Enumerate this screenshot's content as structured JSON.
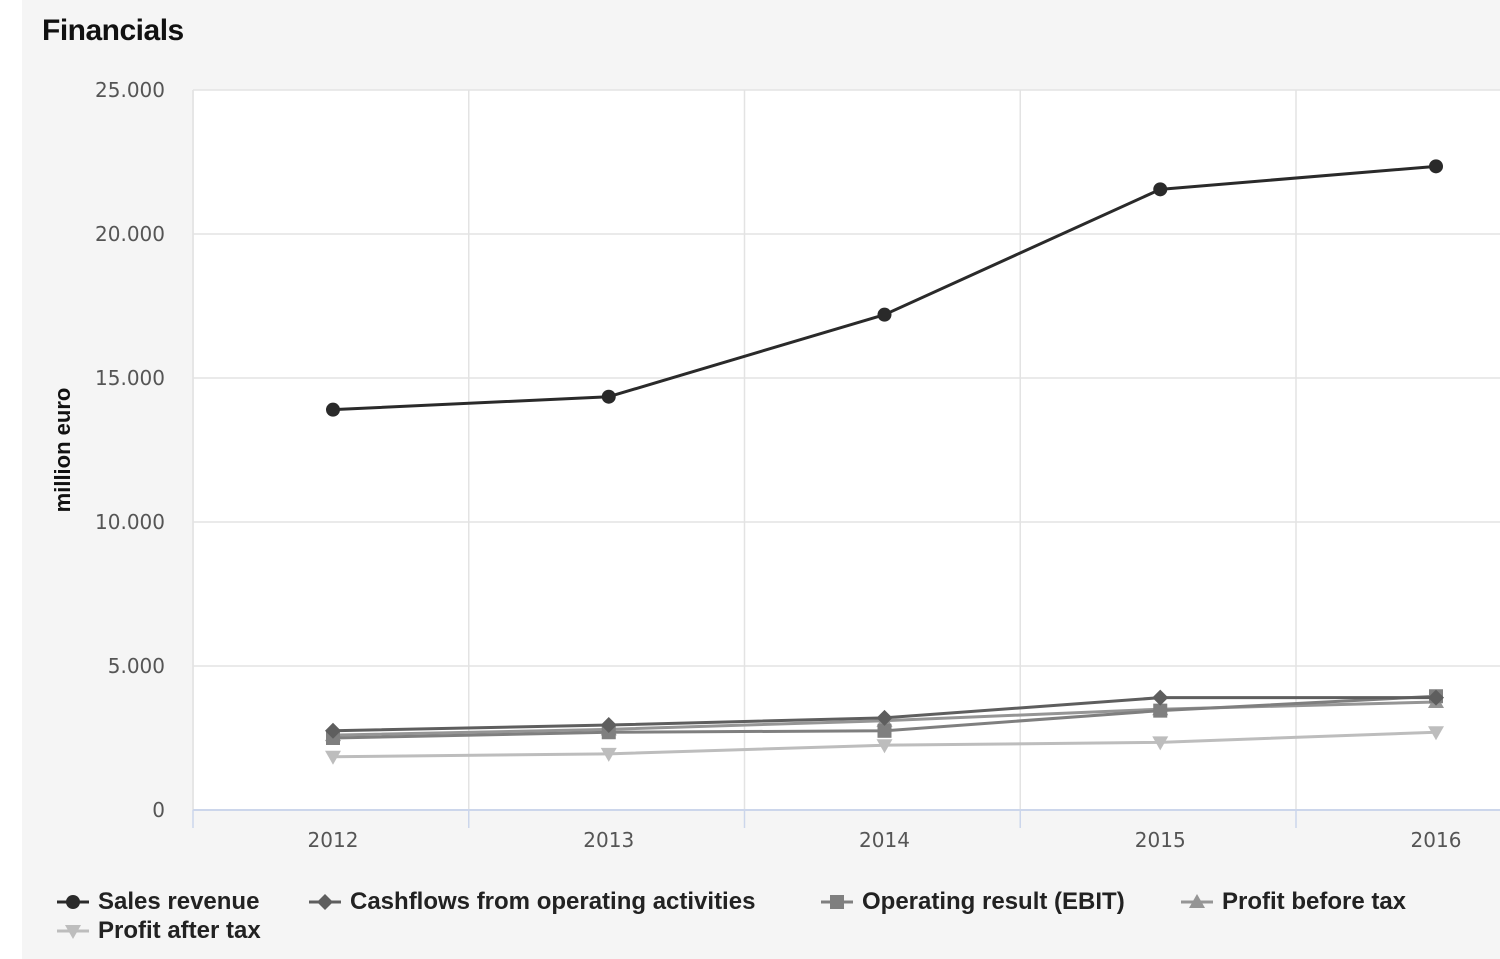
{
  "title": "Financials",
  "colors": {
    "sales": "#2a2a2a",
    "cashflow": "#5e5e5e",
    "ebit": "#7f7f7f",
    "pbt": "#959595",
    "pat": "#bdbdbd",
    "grid": "#e3e3e3",
    "axis": "#ccd6eb"
  },
  "chart_data": {
    "type": "line",
    "title": "Financials",
    "xlabel": "",
    "ylabel": "million euro",
    "categories": [
      "2012",
      "2013",
      "2014",
      "2015",
      "2016"
    ],
    "ylim": [
      0,
      25000
    ],
    "yticks": [
      0,
      5000,
      10000,
      15000,
      20000,
      25000
    ],
    "ytick_labels": [
      "0",
      "5.000",
      "10.000",
      "15.000",
      "20.000",
      "25.000"
    ],
    "grid": true,
    "legend_position": "bottom",
    "series": [
      {
        "name": "Sales revenue",
        "marker": "circle",
        "color": "#2a2a2a",
        "values": [
          13900,
          14350,
          17200,
          21550,
          22350
        ]
      },
      {
        "name": "Cashflows from operating activities",
        "marker": "diamond",
        "color": "#5e5e5e",
        "values": [
          2750,
          2950,
          3200,
          3900,
          3900
        ]
      },
      {
        "name": "Operating result (EBIT)",
        "marker": "square",
        "color": "#7f7f7f",
        "values": [
          2500,
          2700,
          2750,
          3450,
          3950
        ]
      },
      {
        "name": "Profit before tax",
        "marker": "triangle",
        "color": "#959595",
        "values": [
          2600,
          2800,
          3100,
          3500,
          3750
        ]
      },
      {
        "name": "Profit after tax",
        "marker": "triangle-down",
        "color": "#bdbdbd",
        "values": [
          1850,
          1950,
          2250,
          2350,
          2700
        ]
      }
    ]
  }
}
